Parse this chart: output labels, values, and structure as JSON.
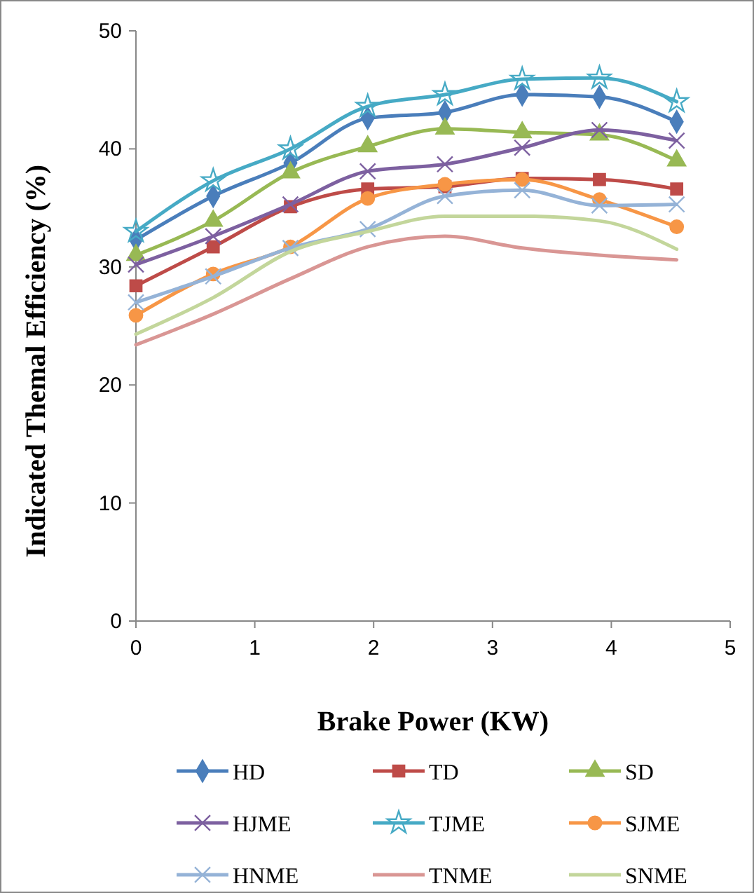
{
  "chart_data": {
    "type": "line",
    "xlabel": "Brake Power (KW)",
    "ylabel": "Indicated Themal Efficiency (%)",
    "x": [
      0,
      0.65,
      1.3,
      1.95,
      2.6,
      3.25,
      3.9,
      4.55
    ],
    "xlim": [
      0,
      5
    ],
    "xticks": [
      0,
      1,
      2,
      3,
      4,
      5
    ],
    "ylim": [
      0,
      50
    ],
    "yticks": [
      0,
      10,
      20,
      30,
      40,
      50
    ],
    "grid": false,
    "legend": "bottom",
    "series": [
      {
        "name": "HD",
        "color": "#4a7ebb",
        "marker": "diamond",
        "values": [
          32.3,
          36,
          38.8,
          42.6,
          43.1,
          44.6,
          44.4,
          42.3
        ]
      },
      {
        "name": "TD",
        "color": "#be4b48",
        "marker": "square",
        "values": [
          28.4,
          31.7,
          35.1,
          36.6,
          36.8,
          37.5,
          37.4,
          36.6
        ]
      },
      {
        "name": "SD",
        "color": "#98b954",
        "marker": "triangle",
        "values": [
          31,
          33.9,
          38,
          40.2,
          41.7,
          41.4,
          41.2,
          39
        ]
      },
      {
        "name": "HJME",
        "color": "#7d60a0",
        "marker": "cross",
        "values": [
          30.2,
          32.6,
          35.3,
          38.1,
          38.7,
          40.1,
          41.6,
          40.7
        ]
      },
      {
        "name": "TJME",
        "color": "#46aac5",
        "marker": "star",
        "values": [
          33,
          37.3,
          40,
          43.6,
          44.6,
          45.9,
          46,
          44
        ]
      },
      {
        "name": "SJME",
        "color": "#f79646",
        "marker": "circle",
        "values": [
          25.9,
          29.4,
          31.7,
          35.8,
          37,
          37.4,
          35.7,
          33.4
        ]
      },
      {
        "name": "HNME",
        "color": "#95b3d7",
        "marker": "cross",
        "values": [
          27,
          29.2,
          31.6,
          33.2,
          36,
          36.5,
          35.2,
          35.3
        ]
      },
      {
        "name": "TNME",
        "color": "#d99694",
        "marker": "none",
        "values": [
          23.4,
          26,
          29,
          31.7,
          32.6,
          31.6,
          31,
          30.6
        ]
      },
      {
        "name": "SNME",
        "color": "#c3d69b",
        "marker": "none",
        "values": [
          24.3,
          27.4,
          31.3,
          33,
          34.3,
          34.3,
          33.9,
          31.5
        ]
      }
    ]
  }
}
